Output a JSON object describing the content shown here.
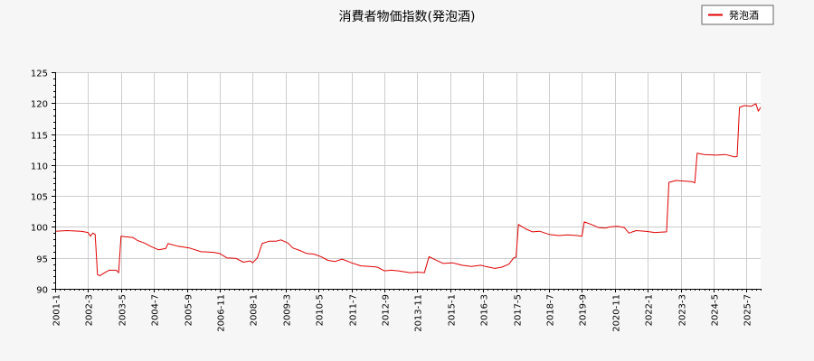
{
  "chart_data": {
    "type": "line",
    "title": "消費者物価指数(発泡酒)",
    "xlabel": "",
    "ylabel": "",
    "ylim": [
      90,
      125
    ],
    "y_ticks": [
      90,
      95,
      100,
      105,
      110,
      115,
      120,
      125
    ],
    "x_range": [
      "2001-01",
      "2026-01"
    ],
    "x_ticks": [
      "2001-1",
      "2002-3",
      "2003-5",
      "2004-7",
      "2005-9",
      "2006-11",
      "2008-1",
      "2009-3",
      "2010-5",
      "2011-7",
      "2012-9",
      "2013-11",
      "2015-1",
      "2016-3",
      "2017-5",
      "2018-7",
      "2019-9",
      "2020-11",
      "2022-1",
      "2023-3",
      "2024-5",
      "2025-7"
    ],
    "grid": true,
    "legend_position": "top-right",
    "series": [
      {
        "name": "発泡酒",
        "color": "#e00000",
        "points": [
          [
            "2001-01",
            99.3
          ],
          [
            "2001-06",
            99.4
          ],
          [
            "2001-12",
            99.3
          ],
          [
            "2002-03",
            99.1
          ],
          [
            "2002-04",
            98.5
          ],
          [
            "2002-05",
            99.0
          ],
          [
            "2002-06",
            98.8
          ],
          [
            "2002-07",
            92.3
          ],
          [
            "2002-08",
            92.1
          ],
          [
            "2002-10",
            92.6
          ],
          [
            "2002-12",
            93.0
          ],
          [
            "2003-03",
            93.0
          ],
          [
            "2003-04",
            92.6
          ],
          [
            "2003-05",
            98.5
          ],
          [
            "2003-07",
            98.4
          ],
          [
            "2003-10",
            98.3
          ],
          [
            "2003-12",
            97.8
          ],
          [
            "2004-03",
            97.4
          ],
          [
            "2004-06",
            96.8
          ],
          [
            "2004-09",
            96.3
          ],
          [
            "2004-12",
            96.5
          ],
          [
            "2005-01",
            97.3
          ],
          [
            "2005-05",
            96.9
          ],
          [
            "2005-10",
            96.6
          ],
          [
            "2006-03",
            96.0
          ],
          [
            "2006-08",
            95.9
          ],
          [
            "2006-11",
            95.7
          ],
          [
            "2007-02",
            95.0
          ],
          [
            "2007-06",
            94.9
          ],
          [
            "2007-09",
            94.3
          ],
          [
            "2007-12",
            94.5
          ],
          [
            "2008-01",
            94.2
          ],
          [
            "2008-03",
            95.0
          ],
          [
            "2008-05",
            97.3
          ],
          [
            "2008-08",
            97.7
          ],
          [
            "2008-11",
            97.7
          ],
          [
            "2009-01",
            97.9
          ],
          [
            "2009-04",
            97.4
          ],
          [
            "2009-06",
            96.6
          ],
          [
            "2009-09",
            96.2
          ],
          [
            "2009-12",
            95.7
          ],
          [
            "2010-03",
            95.6
          ],
          [
            "2010-06",
            95.2
          ],
          [
            "2010-09",
            94.6
          ],
          [
            "2010-12",
            94.4
          ],
          [
            "2011-03",
            94.8
          ],
          [
            "2011-07",
            94.2
          ],
          [
            "2011-11",
            93.7
          ],
          [
            "2012-03",
            93.6
          ],
          [
            "2012-06",
            93.5
          ],
          [
            "2012-09",
            92.9
          ],
          [
            "2012-12",
            93.0
          ],
          [
            "2013-03",
            92.9
          ],
          [
            "2013-08",
            92.6
          ],
          [
            "2013-11",
            92.7
          ],
          [
            "2014-02",
            92.6
          ],
          [
            "2014-04",
            95.2
          ],
          [
            "2014-06",
            94.8
          ],
          [
            "2014-10",
            94.1
          ],
          [
            "2015-02",
            94.2
          ],
          [
            "2015-06",
            93.8
          ],
          [
            "2015-10",
            93.6
          ],
          [
            "2016-02",
            93.8
          ],
          [
            "2016-04",
            93.6
          ],
          [
            "2016-08",
            93.3
          ],
          [
            "2016-11",
            93.5
          ],
          [
            "2017-02",
            94.0
          ],
          [
            "2017-04",
            95.0
          ],
          [
            "2017-05",
            95.1
          ],
          [
            "2017-06",
            100.4
          ],
          [
            "2017-09",
            99.7
          ],
          [
            "2017-12",
            99.2
          ],
          [
            "2018-03",
            99.3
          ],
          [
            "2018-07",
            98.8
          ],
          [
            "2018-11",
            98.6
          ],
          [
            "2019-03",
            98.7
          ],
          [
            "2019-07",
            98.6
          ],
          [
            "2019-09",
            98.5
          ],
          [
            "2019-10",
            100.8
          ],
          [
            "2020-01",
            100.4
          ],
          [
            "2020-04",
            99.9
          ],
          [
            "2020-07",
            99.8
          ],
          [
            "2020-09",
            100.0
          ],
          [
            "2020-12",
            100.1
          ],
          [
            "2021-03",
            99.9
          ],
          [
            "2021-05",
            99.0
          ],
          [
            "2021-08",
            99.4
          ],
          [
            "2021-12",
            99.3
          ],
          [
            "2022-04",
            99.1
          ],
          [
            "2022-09",
            99.2
          ],
          [
            "2022-10",
            107.2
          ],
          [
            "2023-01",
            107.5
          ],
          [
            "2023-05",
            107.4
          ],
          [
            "2023-08",
            107.3
          ],
          [
            "2023-09",
            107.1
          ],
          [
            "2023-10",
            111.9
          ],
          [
            "2024-01",
            111.7
          ],
          [
            "2024-06",
            111.6
          ],
          [
            "2024-10",
            111.7
          ],
          [
            "2025-02",
            111.3
          ],
          [
            "2025-03",
            111.4
          ],
          [
            "2025-04",
            119.3
          ],
          [
            "2025-06",
            119.6
          ],
          [
            "2025-09",
            119.5
          ],
          [
            "2025-11",
            119.9
          ],
          [
            "2025-12",
            118.7
          ],
          [
            "2026-01",
            119.3
          ]
        ]
      }
    ]
  }
}
